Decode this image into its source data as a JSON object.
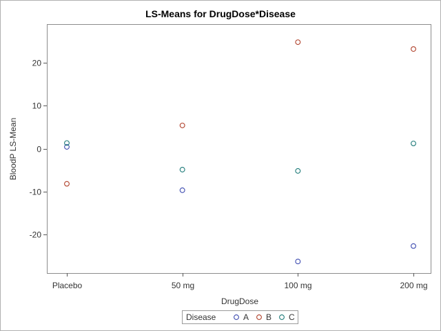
{
  "chart_data": {
    "type": "scatter",
    "title": "LS-Means for DrugDose*Disease",
    "xlabel": "DrugDose",
    "ylabel": "BloodP LS-Mean",
    "categories": [
      "Placebo",
      "50 mg",
      "100 mg",
      "200 mg"
    ],
    "ylim": [
      -29,
      29
    ],
    "yticks": [
      -20,
      -10,
      0,
      10,
      20
    ],
    "grid": true,
    "legend": {
      "title": "Disease",
      "placement": "bottom"
    },
    "series": [
      {
        "name": "A",
        "color": "#3d4bb0",
        "values": [
          0.4,
          -9.7,
          -26.3,
          -22.7
        ]
      },
      {
        "name": "B",
        "color": "#b0402a",
        "values": [
          -8.2,
          5.4,
          24.8,
          23.2
        ]
      },
      {
        "name": "C",
        "color": "#1d7a78",
        "values": [
          1.3,
          -4.9,
          -5.2,
          1.2
        ]
      }
    ]
  }
}
